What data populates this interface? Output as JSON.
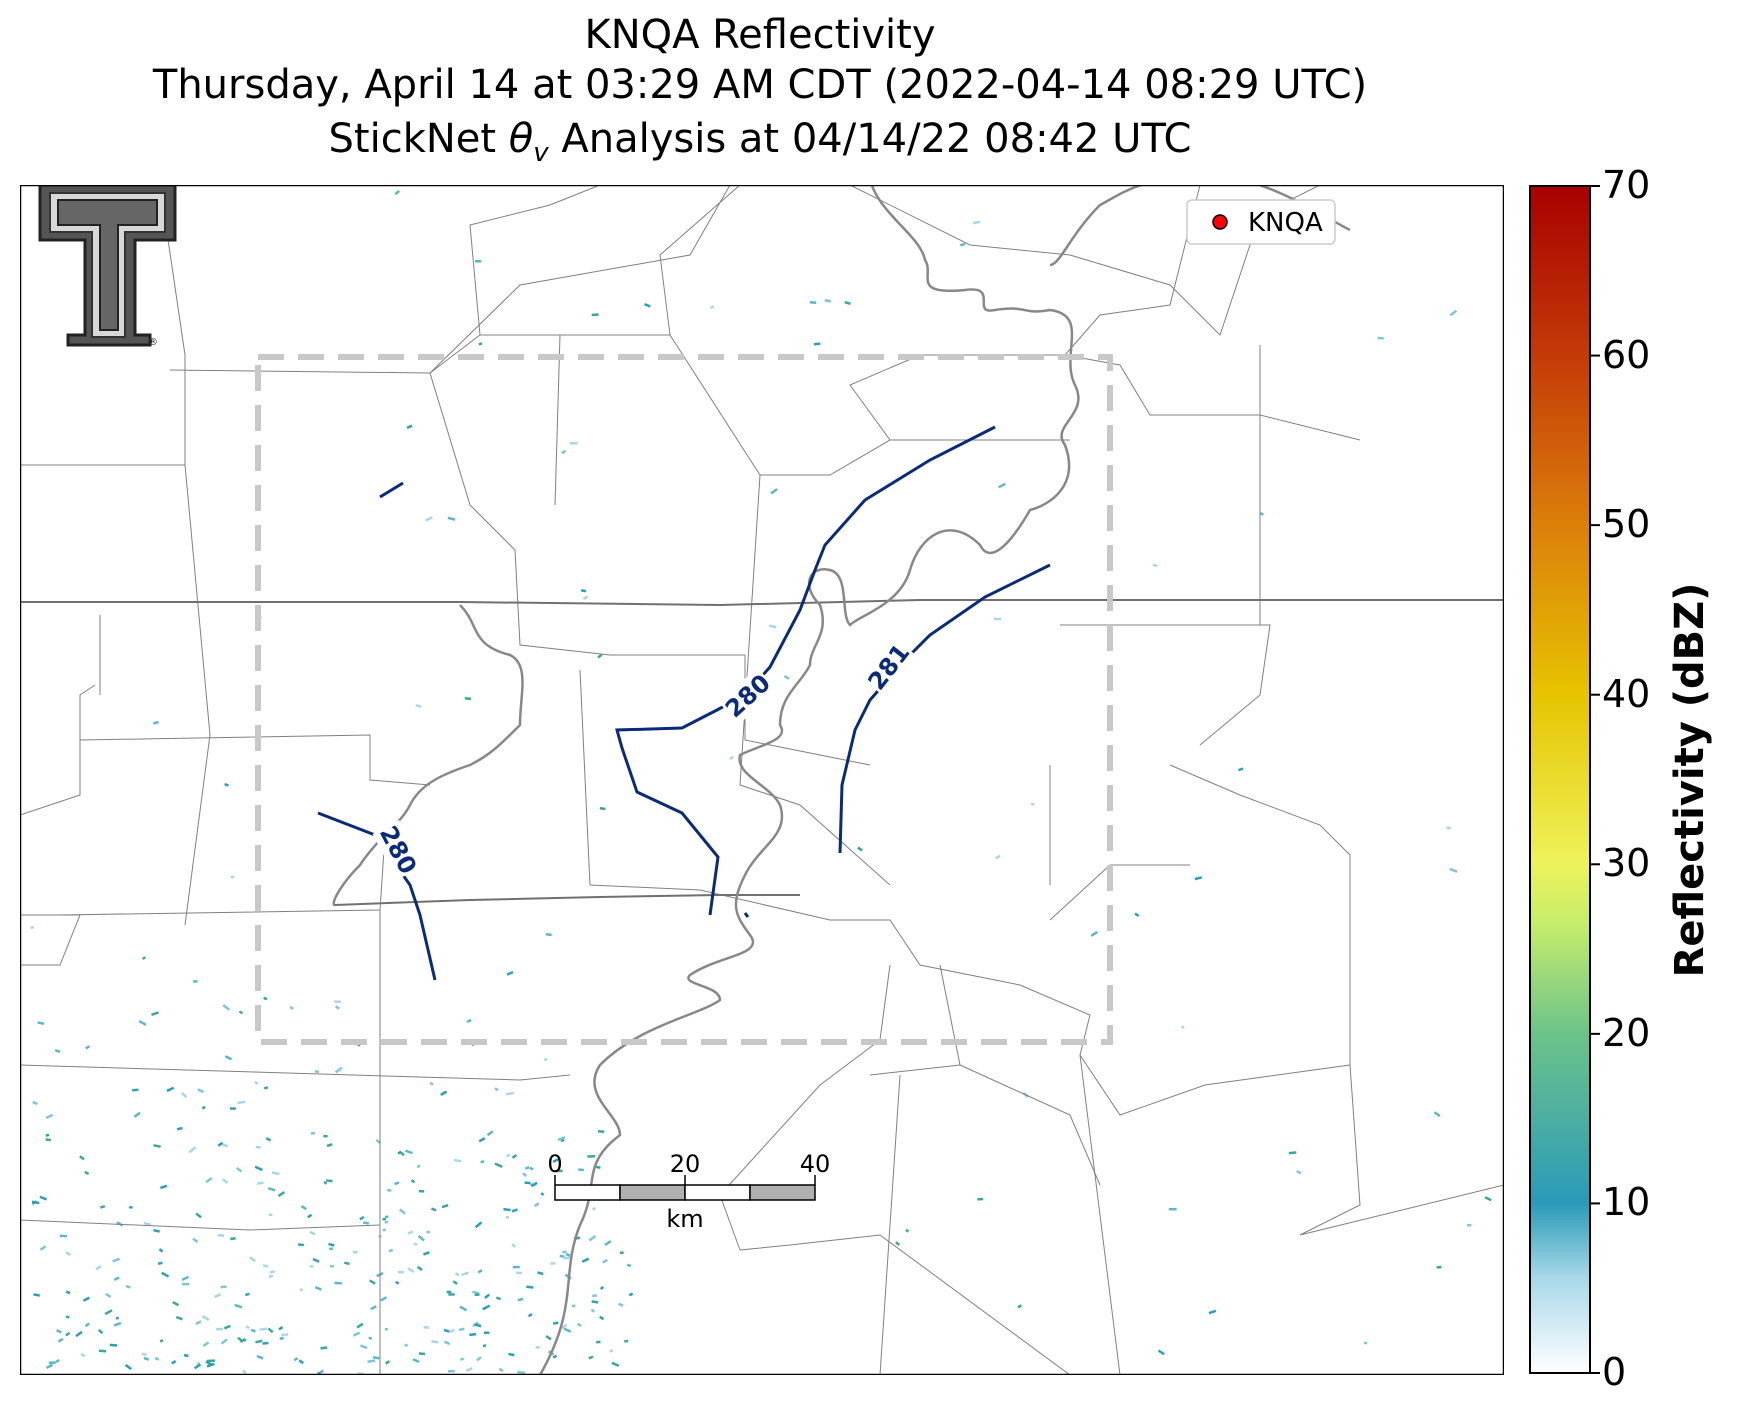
{
  "title": {
    "line1": "KNQA Reflectivity",
    "line2": "Thursday, April 14 at 03:29 AM CDT (2022-04-14 08:29 UTC)",
    "line3_prefix": "StickNet ",
    "line3_symbol": "θ",
    "line3_sub": "v",
    "line3_suffix": " Analysis at 04/14/22 08:42 UTC"
  },
  "legend": {
    "label": "KNQA",
    "marker_color": "#ff0000"
  },
  "colorbar": {
    "label": "Reflectivity (dBZ)",
    "ticks": [
      "0",
      "10",
      "20",
      "30",
      "40",
      "50",
      "60",
      "70"
    ],
    "range": [
      0,
      70
    ]
  },
  "contours": [
    {
      "value": "280",
      "label": "280",
      "color": "#0a2a7a"
    },
    {
      "value": "280",
      "label": "280",
      "color": "#0a2a7a"
    },
    {
      "value": "281",
      "label": "281",
      "color": "#0a2a7a"
    }
  ],
  "scalebar": {
    "labels": [
      "0",
      "20",
      "40"
    ],
    "unit": "km"
  },
  "colors": {
    "river": "#808080",
    "county_border": "#808080",
    "domain_box": "#c8c8c8",
    "contour": "#0a2a7a",
    "echo_teal": "#2aa0b8"
  },
  "logo": {
    "name": "Texas Tech Double T"
  }
}
